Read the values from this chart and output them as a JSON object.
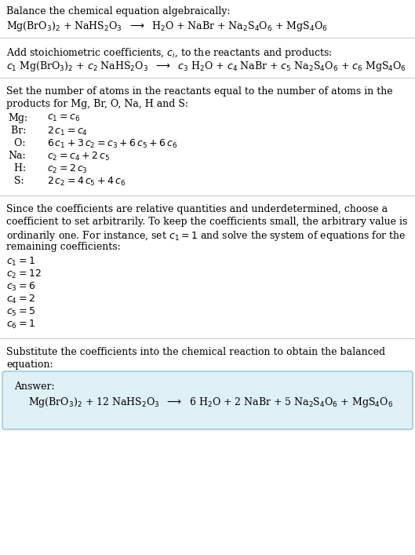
{
  "title_text": "Balance the chemical equation algebraically:",
  "equation_line": "Mg(BrO$_3$)$_2$ + NaHS$_2$O$_3$  $\\longrightarrow$  H$_2$O + NaBr + Na$_2$S$_4$O$_6$ + MgS$_4$O$_6$",
  "section2_intro": "Add stoichiometric coefficients, $c_i$, to the reactants and products:",
  "section2_eq": "$c_1$ Mg(BrO$_3$)$_2$ + $c_2$ NaHS$_2$O$_3$  $\\longrightarrow$  $c_3$ H$_2$O + $c_4$ NaBr + $c_5$ Na$_2$S$_4$O$_6$ + $c_6$ MgS$_4$O$_6$",
  "section3_intro_line1": "Set the number of atoms in the reactants equal to the number of atoms in the",
  "section3_intro_line2": "products for Mg, Br, O, Na, H and S:",
  "equations": [
    [
      "Mg:",
      "$c_1 = c_6$"
    ],
    [
      " Br:",
      "$2\\,c_1 = c_4$"
    ],
    [
      "  O:",
      "$6\\,c_1 + 3\\,c_2 = c_3 + 6\\,c_5 + 6\\,c_6$"
    ],
    [
      "Na:",
      "$c_2 = c_4 + 2\\,c_5$"
    ],
    [
      "  H:",
      "$c_2 = 2\\,c_3$"
    ],
    [
      "  S:",
      "$2\\,c_2 = 4\\,c_5 + 4\\,c_6$"
    ]
  ],
  "section4_intro_lines": [
    "Since the coefficients are relative quantities and underdetermined, choose a",
    "coefficient to set arbitrarily. To keep the coefficients small, the arbitrary value is",
    "ordinarily one. For instance, set $c_1 = 1$ and solve the system of equations for the",
    "remaining coefficients:"
  ],
  "coefficients": [
    "$c_1 = 1$",
    "$c_2 = 12$",
    "$c_3 = 6$",
    "$c_4 = 2$",
    "$c_5 = 5$",
    "$c_6 = 1$"
  ],
  "section5_intro_line1": "Substitute the coefficients into the chemical reaction to obtain the balanced",
  "section5_intro_line2": "equation:",
  "answer_label": "Answer:",
  "answer_eq": "Mg(BrO$_3$)$_2$ + 12 NaHS$_2$O$_3$  $\\longrightarrow$  6 H$_2$O + 2 NaBr + 5 Na$_2$S$_4$O$_6$ + MgS$_4$O$_6$",
  "bg_color": "#ffffff",
  "answer_box_facecolor": "#dff0f7",
  "answer_box_edgecolor": "#90c4d8",
  "text_color": "#000000",
  "line_color": "#cccccc",
  "font_size": 9.0
}
